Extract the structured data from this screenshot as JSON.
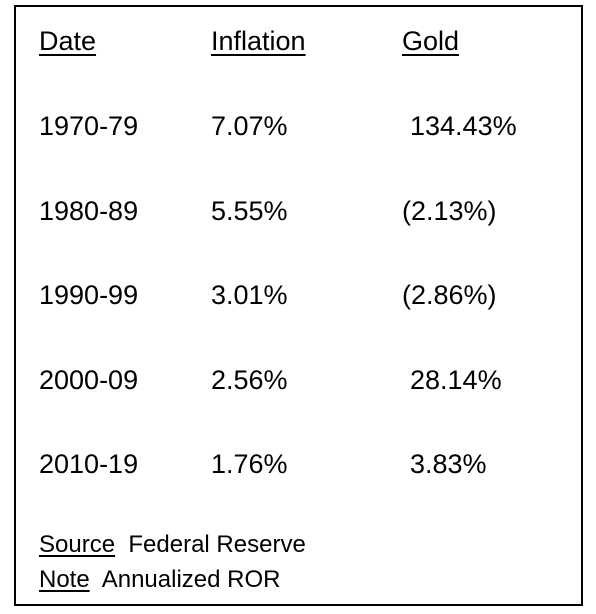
{
  "chart_data": {
    "type": "table",
    "columns": [
      "Date",
      "Inflation",
      "Gold"
    ],
    "rows": [
      [
        "1970-79",
        "7.07%",
        "134.43%"
      ],
      [
        "1980-89",
        "5.55%",
        "(2.13%)"
      ],
      [
        "1990-99",
        "3.01%",
        "(2.86%)"
      ],
      [
        "2000-09",
        "2.56%",
        "28.14%"
      ],
      [
        "2010-19",
        "1.76%",
        "3.83%"
      ]
    ]
  },
  "footer": {
    "source_label": "Source",
    "source_value": "Federal Reserve",
    "note_label": "Note",
    "note_value": "Annualized ROR"
  }
}
